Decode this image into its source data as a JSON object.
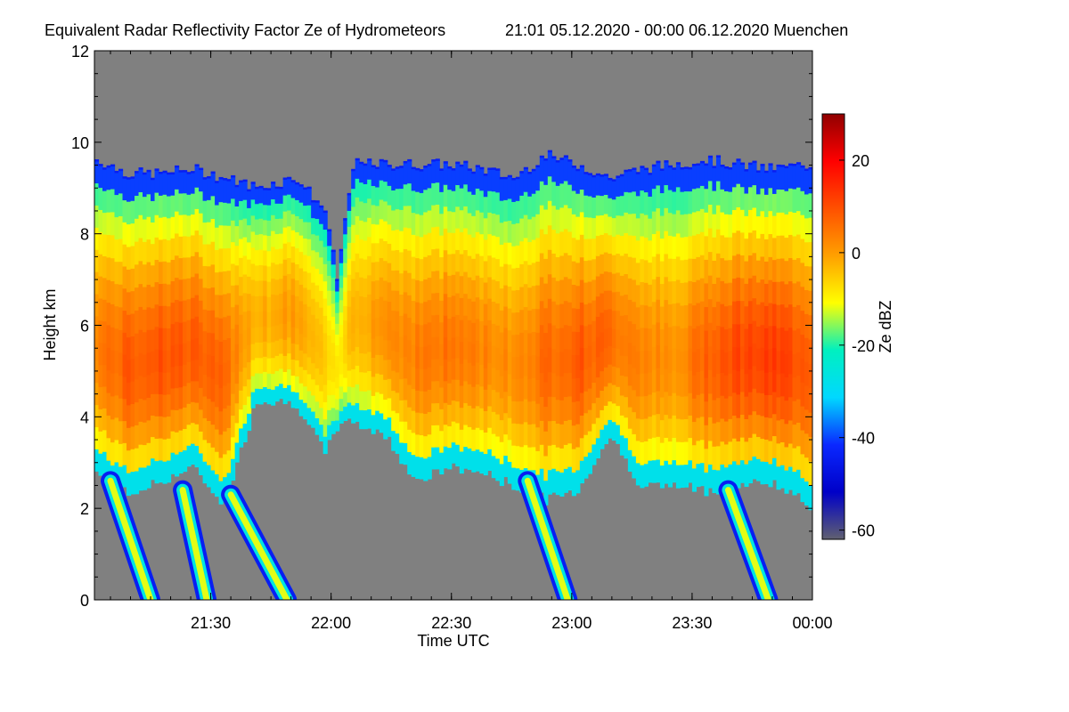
{
  "chart_data": {
    "type": "heatmap",
    "title": "Equivalent Radar Reflectivity Factor Ze of Hydrometeors",
    "subtitle": "21:01 05.12.2020 - 00:00 06.12.2020 Muenchen",
    "xlabel": "Time UTC",
    "ylabel": "Height km",
    "x_range": [
      "21:01",
      "00:00"
    ],
    "x_ticks": [
      "21:30",
      "22:00",
      "22:30",
      "23:00",
      "23:30",
      "00:00"
    ],
    "y_range": [
      0,
      12
    ],
    "y_ticks": [
      "0",
      "2",
      "4",
      "6",
      "8",
      "10",
      "12"
    ],
    "colorbar": {
      "label": "Ze dBZ",
      "range": [
        -62,
        30
      ],
      "ticks": [
        "-60",
        "-40",
        "-20",
        "0",
        "20"
      ],
      "colors": [
        "#606070",
        "#0000c8",
        "#0a28ff",
        "#00d8ff",
        "#00f0c0",
        "#ffff00",
        "#ffa000",
        "#ff5000",
        "#ff0000",
        "#900000"
      ]
    },
    "background_color": "#808080",
    "profile": {
      "time_min": [
        0,
        8,
        16,
        24,
        32,
        40,
        50,
        57,
        60,
        64,
        72,
        80,
        88,
        96,
        104,
        112,
        120,
        128,
        136,
        144,
        152,
        160,
        168,
        179
      ],
      "cloud_top_km": [
        9.6,
        9.3,
        9.3,
        9.4,
        9.2,
        9.0,
        9.2,
        8.5,
        7.0,
        9.5,
        9.5,
        9.5,
        9.5,
        9.4,
        9.2,
        9.7,
        9.5,
        9.2,
        9.4,
        9.5,
        9.6,
        9.5,
        9.4,
        9.5
      ],
      "cloud_base_km": [
        2.8,
        2.3,
        2.6,
        2.9,
        2.1,
        4.4,
        4.3,
        3.2,
        3.8,
        3.9,
        3.6,
        2.6,
        2.9,
        2.8,
        2.5,
        2.2,
        2.4,
        3.6,
        2.5,
        2.5,
        2.4,
        2.5,
        2.6,
        2.0
      ],
      "core_dbz": [
        4,
        8,
        10,
        8,
        6,
        -2,
        0,
        -6,
        -10,
        -2,
        2,
        4,
        5,
        3,
        2,
        6,
        9,
        6,
        4,
        0,
        8,
        11,
        12,
        9
      ]
    },
    "fallstreaks": [
      {
        "from_time_min": 4,
        "from_km": 2.6,
        "to_time_min": 14,
        "to_km": 0.0
      },
      {
        "from_time_min": 22,
        "from_km": 2.4,
        "to_time_min": 28,
        "to_km": 0.0
      },
      {
        "from_time_min": 34,
        "from_km": 2.3,
        "to_time_min": 48,
        "to_km": 0.0
      },
      {
        "from_time_min": 108,
        "from_km": 2.6,
        "to_time_min": 118,
        "to_km": 0.0
      },
      {
        "from_time_min": 158,
        "from_km": 2.4,
        "to_time_min": 168,
        "to_km": 0.0
      }
    ]
  }
}
